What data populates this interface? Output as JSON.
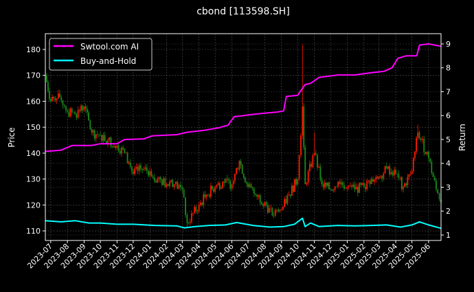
{
  "chart_data": {
    "type": "line",
    "title": "cbond [113598.SH]",
    "ylabel": "Price",
    "ylabel_right": "Return",
    "xlim": [
      "2023-06-21",
      "2025-06-24"
    ],
    "ylim": [
      106.3,
      186.1
    ],
    "ylim_right": [
      0.77,
      9.43
    ],
    "grid": true,
    "legend_position": "top-left",
    "x_ticks": [
      "2023-07",
      "2023-08",
      "2023-09",
      "2023-10",
      "2023-11",
      "2023-12",
      "2024-01",
      "2024-02",
      "2024-03",
      "2024-04",
      "2024-05",
      "2024-06",
      "2024-07",
      "2024-08",
      "2024-09",
      "2024-10",
      "2024-11",
      "2024-12",
      "2025-01",
      "2025-02",
      "2025-03",
      "2025-04",
      "2025-05",
      "2025-06"
    ],
    "y_ticks": [
      110,
      120,
      130,
      140,
      150,
      160,
      170,
      180
    ],
    "y_ticks_right": [
      1,
      2,
      3,
      4,
      5,
      6,
      7,
      8,
      9
    ],
    "colors": {
      "up": "#ff1a00",
      "down": "#1a8c1a",
      "strategy": "#ff00ff",
      "buyhold": "#00ffff",
      "background": "#000000"
    },
    "price": [
      [
        "2023-06-21",
        170,
        178
      ],
      [
        "2023-07-01",
        160
      ],
      [
        "2023-07-15",
        163
      ],
      [
        "2023-08-01",
        156
      ],
      [
        "2023-08-15",
        155
      ],
      [
        "2023-09-01",
        158
      ],
      [
        "2023-09-15",
        148
      ],
      [
        "2023-10-01",
        147
      ],
      [
        "2023-10-15",
        145
      ],
      [
        "2023-11-01",
        143
      ],
      [
        "2023-11-15",
        140
      ],
      [
        "2023-12-01",
        132
      ],
      [
        "2023-12-15",
        134
      ],
      [
        "2024-01-01",
        133
      ],
      [
        "2024-01-15",
        130
      ],
      [
        "2024-02-01",
        128
      ],
      [
        "2024-02-15",
        128
      ],
      [
        "2024-03-01",
        126
      ],
      [
        "2024-03-10",
        113
      ],
      [
        "2024-04-01",
        120
      ],
      [
        "2024-04-15",
        124
      ],
      [
        "2024-05-01",
        127
      ],
      [
        "2024-05-15",
        129
      ],
      [
        "2024-06-01",
        128
      ],
      [
        "2024-06-15",
        137
      ],
      [
        "2024-07-01",
        127
      ],
      [
        "2024-07-15",
        124
      ],
      [
        "2024-08-01",
        121
      ],
      [
        "2024-08-15",
        116
      ],
      [
        "2024-09-01",
        118
      ],
      [
        "2024-09-15",
        124
      ],
      [
        "2024-10-01",
        130
      ],
      [
        "2024-10-10",
        158,
        182
      ],
      [
        "2024-10-15",
        128
      ],
      [
        "2024-11-01",
        140,
        148
      ],
      [
        "2024-11-15",
        128
      ],
      [
        "2024-12-01",
        126
      ],
      [
        "2024-12-15",
        129
      ],
      [
        "2025-01-01",
        127
      ],
      [
        "2025-01-15",
        126
      ],
      [
        "2025-02-01",
        127
      ],
      [
        "2025-02-15",
        130
      ],
      [
        "2025-03-01",
        131
      ],
      [
        "2025-03-15",
        134
      ],
      [
        "2025-04-01",
        132
      ],
      [
        "2025-04-15",
        127
      ],
      [
        "2025-05-01",
        133
      ],
      [
        "2025-05-12",
        148,
        151
      ],
      [
        "2025-06-01",
        138
      ],
      [
        "2025-06-15",
        126
      ],
      [
        "2025-06-24",
        121
      ]
    ],
    "series": [
      {
        "name": "Swtool.com AI",
        "axis": "right",
        "points": [
          [
            "2023-06-21",
            4.5
          ],
          [
            "2023-07-20",
            4.55
          ],
          [
            "2023-08-10",
            4.75
          ],
          [
            "2023-09-15",
            4.75
          ],
          [
            "2023-10-01",
            4.82
          ],
          [
            "2023-11-01",
            4.82
          ],
          [
            "2023-11-15",
            5.0
          ],
          [
            "2023-12-20",
            5.02
          ],
          [
            "2024-01-05",
            5.15
          ],
          [
            "2024-02-20",
            5.2
          ],
          [
            "2024-03-10",
            5.3
          ],
          [
            "2024-04-10",
            5.38
          ],
          [
            "2024-05-10",
            5.5
          ],
          [
            "2024-05-25",
            5.6
          ],
          [
            "2024-06-05",
            5.95
          ],
          [
            "2024-07-10",
            6.05
          ],
          [
            "2024-08-01",
            6.1
          ],
          [
            "2024-08-25",
            6.15
          ],
          [
            "2024-09-05",
            6.2
          ],
          [
            "2024-09-10",
            6.8
          ],
          [
            "2024-10-01",
            6.85
          ],
          [
            "2024-10-15",
            7.3
          ],
          [
            "2024-10-25",
            7.35
          ],
          [
            "2024-11-10",
            7.6
          ],
          [
            "2024-12-15",
            7.7
          ],
          [
            "2025-01-15",
            7.7
          ],
          [
            "2025-02-15",
            7.8
          ],
          [
            "2025-03-10",
            7.85
          ],
          [
            "2025-03-25",
            8.0
          ],
          [
            "2025-04-05",
            8.4
          ],
          [
            "2025-04-20",
            8.5
          ],
          [
            "2025-05-10",
            8.5
          ],
          [
            "2025-05-15",
            8.95
          ],
          [
            "2025-06-01",
            9.0
          ],
          [
            "2025-06-24",
            8.9
          ]
        ]
      },
      {
        "name": "Buy-and-Hold",
        "axis": "right",
        "points": [
          [
            "2023-06-21",
            1.6
          ],
          [
            "2023-07-20",
            1.55
          ],
          [
            "2023-08-15",
            1.6
          ],
          [
            "2023-09-10",
            1.5
          ],
          [
            "2023-10-01",
            1.5
          ],
          [
            "2023-11-01",
            1.45
          ],
          [
            "2023-12-01",
            1.45
          ],
          [
            "2024-01-10",
            1.4
          ],
          [
            "2024-02-20",
            1.38
          ],
          [
            "2024-03-05",
            1.3
          ],
          [
            "2024-03-25",
            1.35
          ],
          [
            "2024-04-20",
            1.4
          ],
          [
            "2024-05-20",
            1.42
          ],
          [
            "2024-06-10",
            1.52
          ],
          [
            "2024-07-10",
            1.4
          ],
          [
            "2024-08-10",
            1.33
          ],
          [
            "2024-09-05",
            1.35
          ],
          [
            "2024-09-25",
            1.45
          ],
          [
            "2024-10-10",
            1.7
          ],
          [
            "2024-10-15",
            1.35
          ],
          [
            "2024-10-25",
            1.5
          ],
          [
            "2024-11-10",
            1.35
          ],
          [
            "2024-12-15",
            1.4
          ],
          [
            "2025-01-15",
            1.38
          ],
          [
            "2025-02-15",
            1.4
          ],
          [
            "2025-03-15",
            1.42
          ],
          [
            "2025-04-10",
            1.33
          ],
          [
            "2025-05-01",
            1.42
          ],
          [
            "2025-05-15",
            1.55
          ],
          [
            "2025-06-01",
            1.42
          ],
          [
            "2025-06-24",
            1.28
          ]
        ]
      }
    ]
  }
}
